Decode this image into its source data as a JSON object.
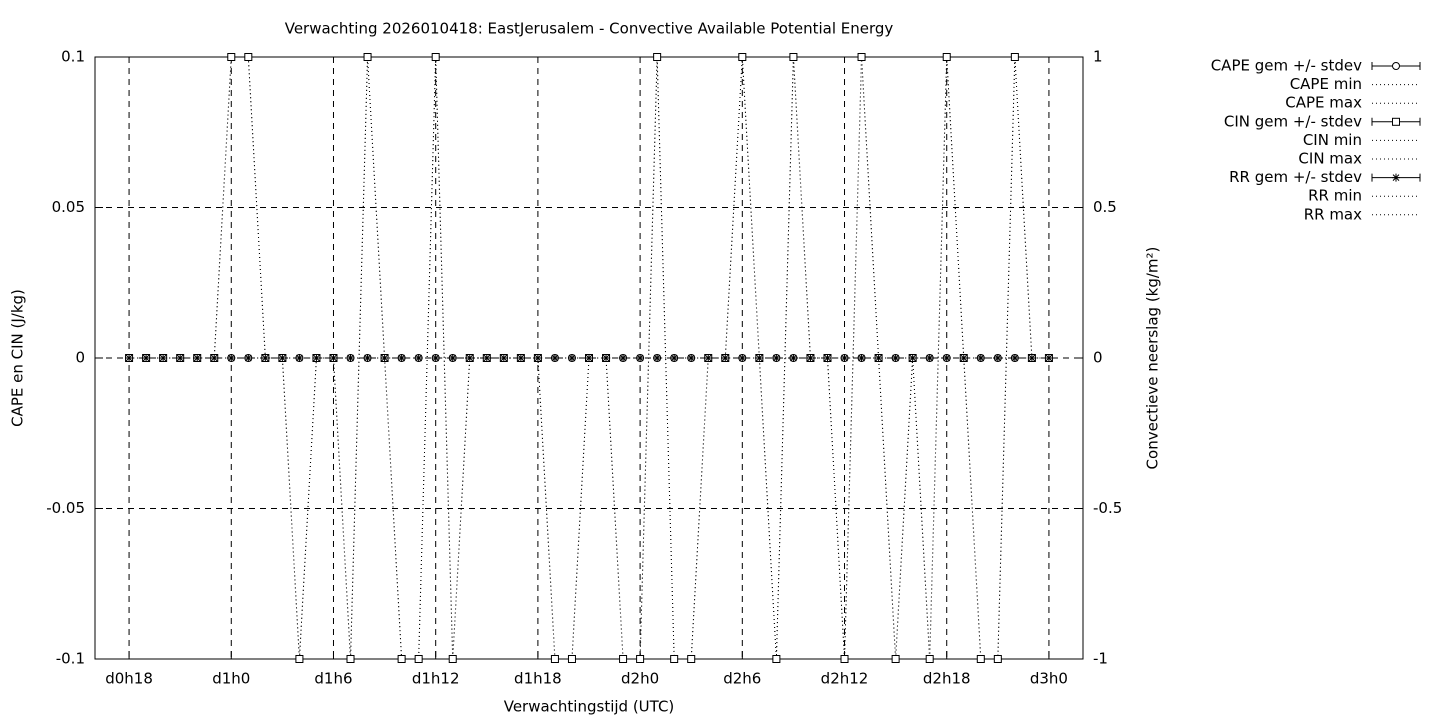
{
  "chart_data": {
    "type": "line",
    "title": "Verwachting 2026010418: EastJerusalem - Convective Available Potential Energy",
    "xlabel": "Verwachtingstijd (UTC)",
    "ylabel": "CAPE en CIN (J/kg)",
    "y2label": "Convectieve neerslag (kg/m²)",
    "x": [
      18,
      19,
      20,
      21,
      22,
      23,
      24,
      25,
      26,
      27,
      28,
      29,
      30,
      31,
      32,
      33,
      34,
      35,
      36,
      37,
      38,
      39,
      40,
      41,
      42,
      43,
      44,
      45,
      46,
      47,
      48,
      49,
      50,
      51,
      52,
      53,
      54,
      55,
      56,
      57,
      58,
      59,
      60,
      61,
      62,
      63,
      64,
      65,
      66,
      67,
      68,
      69,
      70,
      71,
      72
    ],
    "xlim": [
      16,
      74
    ],
    "xticks": [
      {
        "value": 18,
        "label": "d0h18"
      },
      {
        "value": 24,
        "label": "d1h0"
      },
      {
        "value": 30,
        "label": "d1h6"
      },
      {
        "value": 36,
        "label": "d1h12"
      },
      {
        "value": 42,
        "label": "d1h18"
      },
      {
        "value": 48,
        "label": "d2h0"
      },
      {
        "value": 54,
        "label": "d2h6"
      },
      {
        "value": 60,
        "label": "d2h12"
      },
      {
        "value": 66,
        "label": "d2h18"
      },
      {
        "value": 72,
        "label": "d3h0"
      }
    ],
    "ylim": [
      -0.1,
      0.1
    ],
    "yticks": [
      -0.1,
      -0.05,
      0,
      0.05,
      0.1
    ],
    "y2lim": [
      -1,
      1
    ],
    "y2ticks": [
      -1,
      -0.5,
      0,
      0.5,
      1
    ],
    "grid": true,
    "legend": "right",
    "series": [
      {
        "name": "CAPE gem +/- stdev",
        "color": "#000000",
        "style": "errorbars",
        "marker": "circle",
        "values": [
          0,
          0,
          0,
          0,
          0,
          0,
          0,
          0,
          0,
          0,
          0,
          0,
          0,
          0,
          0,
          0,
          0,
          0,
          0,
          0,
          0,
          0,
          0,
          0,
          0,
          0,
          0,
          0,
          0,
          0,
          0,
          0,
          0,
          0,
          0,
          0,
          0,
          0,
          0,
          0,
          0,
          0,
          0,
          0,
          0,
          0,
          0,
          0,
          0,
          0,
          0,
          0,
          0,
          0,
          0
        ]
      },
      {
        "name": "CAPE min",
        "color": "#000000",
        "style": "dotted",
        "values": [
          0,
          0,
          0,
          0,
          0,
          0,
          0,
          0,
          0,
          0,
          0,
          0,
          0,
          0,
          0,
          0,
          0,
          0,
          0,
          0,
          0,
          0,
          0,
          0,
          0,
          0,
          0,
          0,
          0,
          0,
          0,
          0,
          0,
          0,
          0,
          0,
          0,
          0,
          0,
          0,
          0,
          0,
          0,
          0,
          0,
          0,
          0,
          0,
          0,
          0,
          0,
          0,
          0,
          0,
          0
        ]
      },
      {
        "name": "CAPE max",
        "color": "#000000",
        "style": "dotted",
        "values": [
          0,
          0,
          0,
          0,
          0,
          0,
          0,
          0,
          0,
          0,
          0,
          0,
          0,
          0,
          0,
          0,
          0,
          0,
          0,
          0,
          0,
          0,
          0,
          0,
          0,
          0,
          0,
          0,
          0,
          0,
          0,
          0,
          0,
          0,
          0,
          0,
          0,
          0,
          0,
          0,
          0,
          0,
          0,
          0,
          0,
          0,
          0,
          0,
          0,
          0,
          0,
          0,
          0,
          0,
          0
        ]
      },
      {
        "name": "CIN gem +/- stdev",
        "color": "#000000",
        "style": "errorbars",
        "marker": "square",
        "values": [
          0,
          0,
          0,
          0,
          0,
          0,
          0.1,
          0.1,
          0,
          0,
          -0.1,
          0,
          0,
          -0.1,
          0.1,
          0,
          -0.1,
          -0.1,
          0.1,
          -0.1,
          0,
          0,
          0,
          0,
          0,
          -0.1,
          -0.1,
          0,
          0,
          -0.1,
          -0.1,
          0.1,
          -0.1,
          -0.1,
          0,
          0,
          0.1,
          0,
          -0.1,
          0.1,
          0,
          0,
          -0.1,
          0.1,
          0,
          -0.1,
          0,
          -0.1,
          0.1,
          0,
          -0.1,
          -0.1,
          0.1,
          0,
          0
        ]
      },
      {
        "name": "CIN min",
        "color": "#000000",
        "style": "dotted",
        "values": [
          0,
          0,
          0,
          0,
          0,
          0,
          0.1,
          0.1,
          0,
          0,
          -0.1,
          0,
          0,
          -0.1,
          0.1,
          0,
          -0.1,
          -0.1,
          0.1,
          -0.1,
          0,
          0,
          0,
          0,
          0,
          -0.1,
          -0.1,
          0,
          0,
          -0.1,
          -0.1,
          0.1,
          -0.1,
          -0.1,
          0,
          0,
          0.1,
          0,
          -0.1,
          0.1,
          0,
          0,
          -0.1,
          0.1,
          0,
          -0.1,
          0,
          -0.1,
          0.1,
          0,
          -0.1,
          -0.1,
          0.1,
          0,
          0
        ]
      },
      {
        "name": "CIN max",
        "color": "#000000",
        "style": "dotted",
        "values": [
          0,
          0,
          0,
          0,
          0,
          0,
          0.1,
          0.1,
          0,
          0,
          -0.1,
          0,
          0,
          -0.1,
          0.1,
          0,
          -0.1,
          -0.1,
          0.1,
          -0.1,
          0,
          0,
          0,
          0,
          0,
          -0.1,
          -0.1,
          0,
          0,
          -0.1,
          -0.1,
          0.1,
          -0.1,
          -0.1,
          0,
          0,
          0.1,
          0,
          -0.1,
          0.1,
          0,
          0,
          -0.1,
          0.1,
          0,
          -0.1,
          0,
          -0.1,
          0.1,
          0,
          -0.1,
          -0.1,
          0.1,
          0,
          0
        ]
      },
      {
        "name": "RR gem +/- stdev",
        "color": "#000000",
        "style": "errorbars",
        "marker": "star",
        "axis": "y2",
        "values": [
          0,
          0,
          0,
          0,
          0,
          0,
          0,
          0,
          0,
          0,
          0,
          0,
          0,
          0,
          0,
          0,
          0,
          0,
          0,
          0,
          0,
          0,
          0,
          0,
          0,
          0,
          0,
          0,
          0,
          0,
          0,
          0,
          0,
          0,
          0,
          0,
          0,
          0,
          0,
          0,
          0,
          0,
          0,
          0,
          0,
          0,
          0,
          0,
          0,
          0,
          0,
          0,
          0,
          0,
          0
        ]
      },
      {
        "name": "RR min",
        "color": "#000000",
        "style": "dotted",
        "axis": "y2",
        "values": [
          0,
          0,
          0,
          0,
          0,
          0,
          0,
          0,
          0,
          0,
          0,
          0,
          0,
          0,
          0,
          0,
          0,
          0,
          0,
          0,
          0,
          0,
          0,
          0,
          0,
          0,
          0,
          0,
          0,
          0,
          0,
          0,
          0,
          0,
          0,
          0,
          0,
          0,
          0,
          0,
          0,
          0,
          0,
          0,
          0,
          0,
          0,
          0,
          0,
          0,
          0,
          0,
          0,
          0,
          0
        ]
      },
      {
        "name": "RR max",
        "color": "#000000",
        "style": "dotted",
        "axis": "y2",
        "values": [
          0,
          0,
          0,
          0,
          0,
          0,
          0,
          0,
          0,
          0,
          0,
          0,
          0,
          0,
          0,
          0,
          0,
          0,
          0,
          0,
          0,
          0,
          0,
          0,
          0,
          0,
          0,
          0,
          0,
          0,
          0,
          0,
          0,
          0,
          0,
          0,
          0,
          0,
          0,
          0,
          0,
          0,
          0,
          0,
          0,
          0,
          0,
          0,
          0,
          0,
          0,
          0,
          0,
          0,
          0
        ]
      }
    ]
  }
}
